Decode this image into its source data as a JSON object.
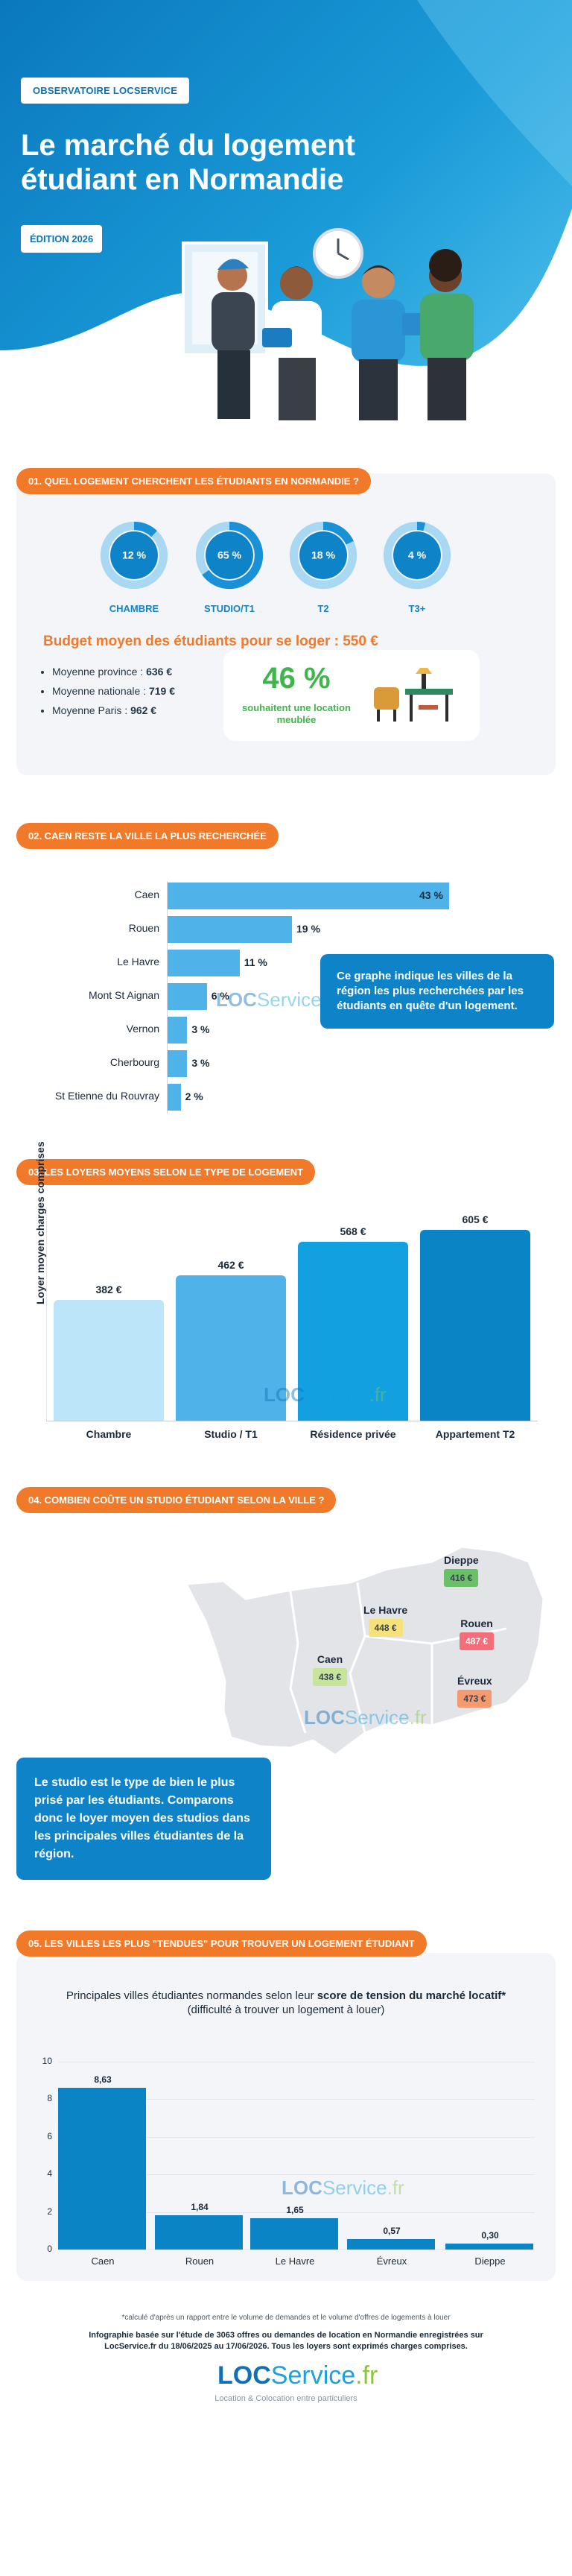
{
  "header": {
    "badge": "OBSERVATOIRE LOCSERVICE",
    "title": "Le marché du logement étudiant en Normandie",
    "edition": "ÉDITION 2026"
  },
  "section1": {
    "heading": "01. QUEL LOGEMENT CHERCHENT LES ÉTUDIANTS EN NORMANDIE ?",
    "types": [
      {
        "label": "CHAMBRE",
        "value": "12 %",
        "pct": 12
      },
      {
        "label": "STUDIO/T1",
        "value": "65 %",
        "pct": 65
      },
      {
        "label": "T2",
        "value": "18 %",
        "pct": 18
      },
      {
        "label": "T3+",
        "value": "4 %",
        "pct": 4
      }
    ],
    "budget": "Budget moyen des étudiants pour se loger : 550 €",
    "budget_items": [
      {
        "label": "Moyenne province : ",
        "value": "636 €"
      },
      {
        "label": "Moyenne nationale : ",
        "value": "719 €"
      },
      {
        "label": "Moyenne Paris : ",
        "value": "962 €"
      }
    ],
    "meuble_pct": "46 %",
    "meuble_label": "souhaitent une location meublée"
  },
  "section2": {
    "heading": "02. CAEN RESTE LA VILLE LA PLUS RECHERCHÉE",
    "callout": "Ce graphe indique les villes de la région les plus recherchées par les étudiants en quête d'un logement.",
    "chart_data": {
      "type": "bar",
      "orientation": "horizontal",
      "categories": [
        "Caen",
        "Rouen",
        "Le Havre",
        "Mont St Aignan",
        "Vernon",
        "Cherbourg",
        "St Etienne du Rouvray"
      ],
      "values": [
        43,
        19,
        11,
        6,
        3,
        3,
        2
      ],
      "value_labels": [
        "43 %",
        "19 %",
        "11 %",
        "6 %",
        "3 %",
        "3 %",
        "2 %"
      ],
      "unit": "%",
      "color": "#4fb3ea"
    }
  },
  "section3": {
    "heading": "03. LES LOYERS MOYENS SELON LE TYPE DE LOGEMENT",
    "chart_data": {
      "type": "bar",
      "categories": [
        "Chambre",
        "Studio / T1",
        "Résidence privée",
        "Appartement T2"
      ],
      "values": [
        382,
        462,
        568,
        605
      ],
      "value_labels": [
        "382 €",
        "462 €",
        "568 €",
        "605 €"
      ],
      "ylabel": "Loyer moyen charges comprises",
      "ylim": [
        0,
        605
      ],
      "colors": [
        "#bde5fa",
        "#4fb3ea",
        "#12a0e0",
        "#0b84c6"
      ]
    }
  },
  "section4": {
    "heading": "04. COMBIEN COÛTE UN STUDIO ÉTUDIANT SELON LA VILLE ?",
    "cities": [
      {
        "name": "Dieppe",
        "price": "416 €",
        "color": "#6abf69"
      },
      {
        "name": "Le Havre",
        "price": "448 €",
        "color": "#f5e27a"
      },
      {
        "name": "Rouen",
        "price": "487 €",
        "color": "#f46d7a"
      },
      {
        "name": "Caen",
        "price": "438 €",
        "color": "#c7e59a"
      },
      {
        "name": "Évreux",
        "price": "473 €",
        "color": "#f59a6f"
      }
    ],
    "callout": "Le studio est le type de bien le plus prisé par les étudiants. Comparons donc le loyer moyen des studios dans les principales villes étudiantes de la région."
  },
  "section5": {
    "heading": "05. LES VILLES LES PLUS \"TENDUES\" POUR TROUVER UN LOGEMENT ÉTUDIANT",
    "title_a": "Principales villes étudiantes normandes selon leur ",
    "title_b": "score de tension du marché locatif*",
    "title_c": " (difficulté à trouver un logement à louer)",
    "chart_data": {
      "type": "bar",
      "categories": [
        "Caen",
        "Rouen",
        "Le Havre",
        "Évreux",
        "Dieppe"
      ],
      "values": [
        8.63,
        1.84,
        1.65,
        0.57,
        0.3
      ],
      "value_labels": [
        "8,63",
        "1,84",
        "1,65",
        "0,57",
        "0,30"
      ],
      "ylim": [
        0,
        10
      ],
      "yticks": [
        "0",
        "2",
        "4",
        "6",
        "8",
        "10"
      ],
      "color": "#0b84c6"
    }
  },
  "footer": {
    "footnote": "*calculé d'après un rapport entre le volume de demandes et le volume d'offres de logements à louer",
    "info": "Infographie basée sur l'étude de 3063 offres ou demandes de location en Normandie enregistrées sur LocService.fr du 18/06/2025 au 17/06/2026. Tous les loyers sont exprimés charges comprises.",
    "logo_loc": "LOC",
    "logo_service": "Service",
    "logo_fr": ".fr",
    "tagline": "Location & Colocation entre particuliers"
  },
  "colors": {
    "primary": "#0b84c6",
    "accent": "#f07a2a",
    "green": "#3fb54b"
  }
}
